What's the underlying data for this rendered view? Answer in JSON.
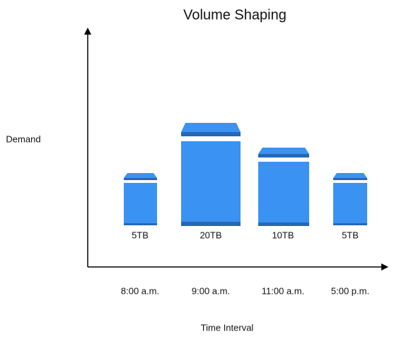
{
  "title": "Volume Shaping",
  "y_axis_label": "Demand",
  "x_axis_label": "Time Interval",
  "items": [
    {
      "volume": "5TB",
      "time": "8:00 a.m."
    },
    {
      "volume": "20TB",
      "time": "9:00 a.m."
    },
    {
      "volume": "10TB",
      "time": "11:00 a.m."
    },
    {
      "volume": "5TB",
      "time": "5:00 p.m."
    }
  ]
}
